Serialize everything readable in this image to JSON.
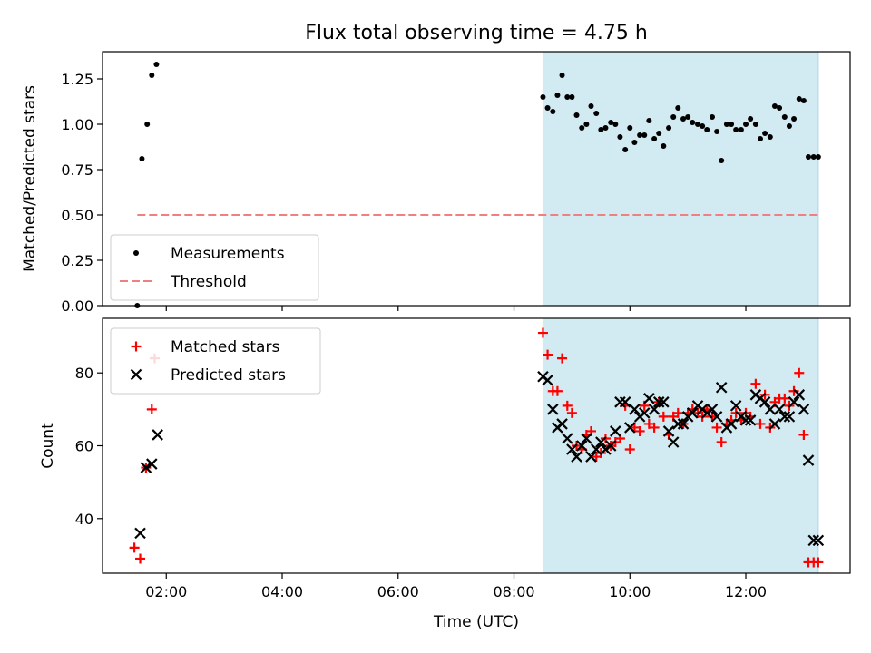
{
  "title": "Flux total observing time = 4.75 h",
  "chart_data": [
    {
      "type": "scatter",
      "panel": "top",
      "ylabel": "Matched/Predicted stars",
      "xlabel": "",
      "xlim": [
        0.9,
        13.8
      ],
      "ylim": [
        0.0,
        1.4
      ],
      "yticks": [
        0.0,
        0.25,
        0.5,
        0.75,
        1.0,
        1.25
      ],
      "ytick_labels": [
        "0.00",
        "0.25",
        "0.50",
        "0.75",
        "1.00",
        "1.25"
      ],
      "highlight_span": {
        "x_start": 8.5,
        "x_end": 13.25,
        "color": "#add8e6"
      },
      "threshold": {
        "name": "Threshold",
        "y": 0.5,
        "x_start": 1.5,
        "x_end": 13.25,
        "color": "#f08080"
      },
      "legend": {
        "position": "lower-left",
        "entries": [
          "Measurements",
          "Threshold"
        ]
      },
      "series": [
        {
          "name": "Measurements",
          "marker": "dot",
          "color": "#000000",
          "x": [
            1.5,
            1.58,
            1.67,
            1.75,
            1.83,
            8.5,
            8.58,
            8.67,
            8.75,
            8.83,
            8.92,
            9.0,
            9.08,
            9.17,
            9.25,
            9.33,
            9.42,
            9.5,
            9.58,
            9.67,
            9.75,
            9.83,
            9.92,
            10.0,
            10.08,
            10.17,
            10.25,
            10.33,
            10.42,
            10.5,
            10.58,
            10.67,
            10.75,
            10.83,
            10.92,
            11.0,
            11.08,
            11.17,
            11.25,
            11.33,
            11.42,
            11.5,
            11.58,
            11.67,
            11.75,
            11.83,
            11.92,
            12.0,
            12.08,
            12.17,
            12.25,
            12.33,
            12.42,
            12.5,
            12.58,
            12.67,
            12.75,
            12.83,
            12.92,
            13.0,
            13.08,
            13.17,
            13.25
          ],
          "y": [
            0.0,
            0.81,
            1.0,
            1.27,
            1.33,
            1.15,
            1.09,
            1.07,
            1.16,
            1.27,
            1.15,
            1.15,
            1.05,
            0.98,
            1.0,
            1.1,
            1.06,
            0.97,
            0.98,
            1.01,
            1.0,
            0.93,
            0.86,
            0.98,
            0.9,
            0.94,
            0.94,
            1.02,
            0.92,
            0.95,
            0.88,
            0.98,
            1.04,
            1.09,
            1.03,
            1.04,
            1.01,
            1.0,
            0.99,
            0.97,
            1.04,
            0.96,
            0.8,
            1.0,
            1.0,
            0.97,
            0.97,
            1.0,
            1.03,
            1.0,
            0.92,
            0.95,
            0.93,
            1.1,
            1.09,
            1.04,
            0.99,
            1.03,
            1.14,
            1.13,
            0.82,
            0.82,
            0.82
          ]
        }
      ]
    },
    {
      "type": "scatter",
      "panel": "bottom",
      "xlabel": "Time (UTC)",
      "ylabel": "Count",
      "xlim": [
        0.9,
        13.8
      ],
      "ylim": [
        25,
        95
      ],
      "xticks": [
        2,
        4,
        6,
        8,
        10,
        12
      ],
      "xtick_labels": [
        "02:00",
        "04:00",
        "06:00",
        "08:00",
        "10:00",
        "12:00"
      ],
      "yticks": [
        40,
        60,
        80
      ],
      "ytick_labels": [
        "40",
        "60",
        "80"
      ],
      "highlight_span": {
        "x_start": 8.5,
        "x_end": 13.25,
        "color": "#add8e6"
      },
      "legend": {
        "position": "top-left",
        "entries": [
          "Matched stars",
          "Predicted stars"
        ]
      },
      "series": [
        {
          "name": "Matched stars",
          "marker": "plus",
          "color": "#ff0000",
          "x": [
            1.45,
            1.55,
            1.65,
            1.75,
            1.8,
            8.5,
            8.58,
            8.67,
            8.75,
            8.83,
            8.92,
            9.0,
            9.08,
            9.17,
            9.25,
            9.33,
            9.42,
            9.5,
            9.58,
            9.67,
            9.75,
            9.83,
            9.92,
            10.0,
            10.08,
            10.17,
            10.25,
            10.33,
            10.42,
            10.5,
            10.58,
            10.67,
            10.75,
            10.83,
            10.92,
            11.0,
            11.08,
            11.17,
            11.25,
            11.33,
            11.42,
            11.5,
            11.58,
            11.67,
            11.75,
            11.83,
            11.92,
            12.0,
            12.08,
            12.17,
            12.25,
            12.33,
            12.42,
            12.5,
            12.58,
            12.67,
            12.75,
            12.83,
            12.92,
            13.0,
            13.08,
            13.17,
            13.25
          ],
          "y": [
            32,
            29,
            54,
            70,
            84,
            91,
            85,
            75,
            75,
            84,
            71,
            69,
            60,
            59,
            63,
            64,
            57,
            58,
            62,
            60,
            61,
            62,
            71,
            59,
            65,
            64,
            71,
            66,
            65,
            72,
            68,
            63,
            68,
            69,
            66,
            69,
            70,
            69,
            68,
            70,
            68,
            65,
            61,
            66,
            67,
            69,
            67,
            69,
            68,
            77,
            66,
            74,
            65,
            72,
            73,
            73,
            71,
            75,
            80,
            63,
            28,
            28,
            28
          ]
        },
        {
          "name": "Predicted stars",
          "marker": "x",
          "color": "#000000",
          "x": [
            1.55,
            1.65,
            1.75,
            1.85,
            8.5,
            8.58,
            8.67,
            8.75,
            8.83,
            8.92,
            9.0,
            9.08,
            9.17,
            9.25,
            9.33,
            9.42,
            9.5,
            9.58,
            9.67,
            9.75,
            9.83,
            9.92,
            10.0,
            10.08,
            10.17,
            10.25,
            10.33,
            10.42,
            10.5,
            10.58,
            10.67,
            10.75,
            10.83,
            10.92,
            11.0,
            11.08,
            11.17,
            11.25,
            11.33,
            11.42,
            11.5,
            11.58,
            11.67,
            11.75,
            11.83,
            11.92,
            12.0,
            12.08,
            12.17,
            12.25,
            12.33,
            12.42,
            12.5,
            12.58,
            12.67,
            12.75,
            12.83,
            12.92,
            13.0,
            13.08,
            13.17,
            13.25
          ],
          "y": [
            36,
            54,
            55,
            63,
            79,
            78,
            70,
            65,
            66,
            62,
            59,
            57,
            60,
            62,
            57,
            59,
            61,
            59,
            60,
            64,
            72,
            72,
            65,
            70,
            68,
            69,
            73,
            70,
            72,
            72,
            64,
            61,
            66,
            66,
            68,
            69,
            71,
            70,
            69,
            70,
            68,
            76,
            65,
            66,
            71,
            68,
            67,
            67,
            74,
            73,
            72,
            70,
            66,
            70,
            68,
            68,
            72,
            74,
            70,
            56,
            34,
            34
          ]
        }
      ]
    }
  ]
}
